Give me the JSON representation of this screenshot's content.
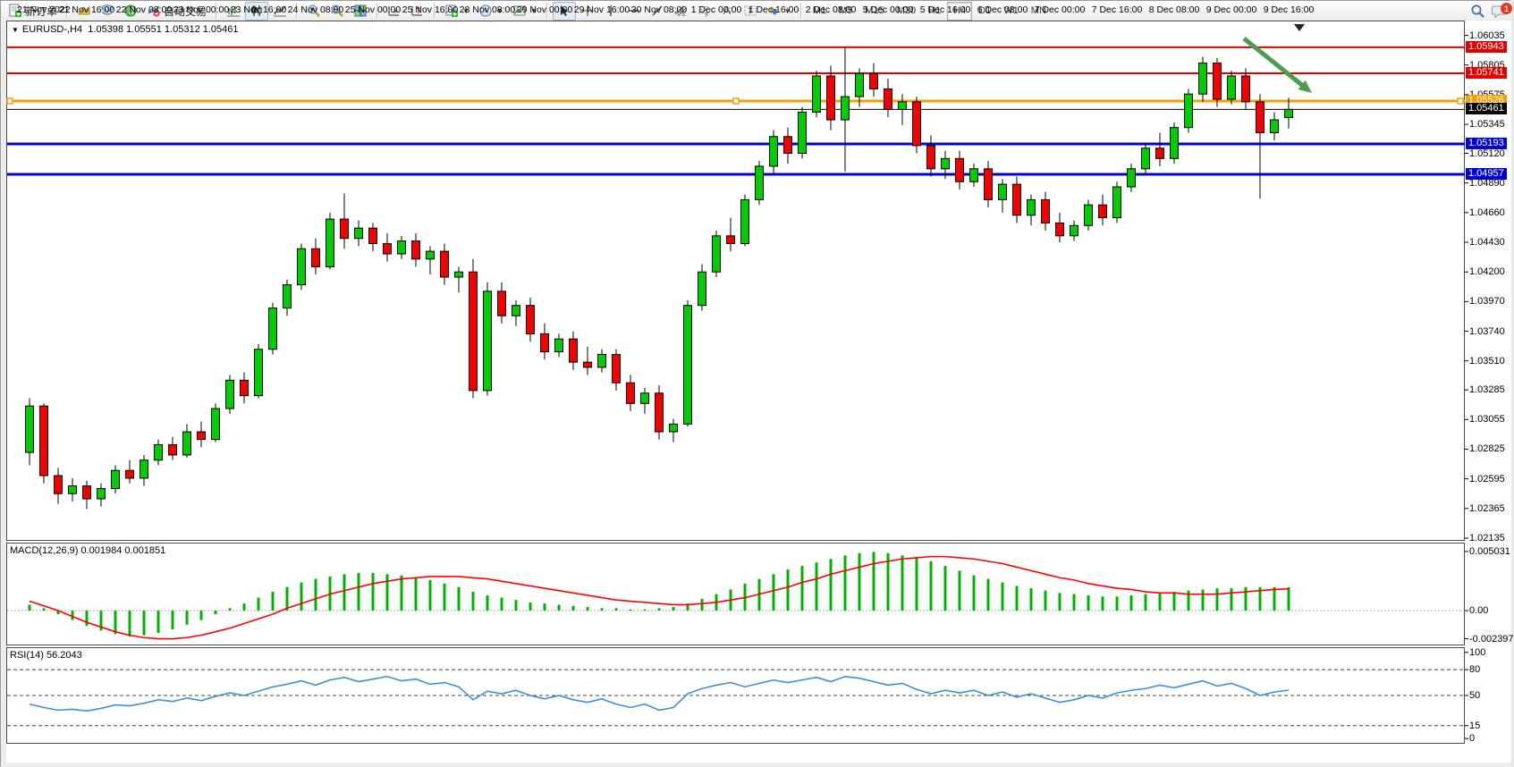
{
  "toolbar": {
    "new_order_label": "新订单",
    "auto_trading_label": "自动交易",
    "chart_tool_labels": {
      "annotation_a": "A",
      "annotation_t": "T",
      "channel": "E",
      "fibonacci": "F"
    },
    "timeframes": [
      "M1",
      "M5",
      "M15",
      "M30",
      "H1",
      "H4",
      "D1",
      "W1",
      "MN"
    ],
    "active_timeframe": "H4",
    "notification_count": "1"
  },
  "chart": {
    "title_symbol": "EURUSD-,H4",
    "title_ohlc": "1.05398 1.05551 1.05312 1.05461",
    "dropdown_triangle": "▼",
    "shift_marker": "▼"
  },
  "indicators": {
    "macd_label": "MACD(12,26,9) 0.001984 0.001851",
    "rsi_label": "RSI(14) 56.2043"
  },
  "price_axis": {
    "ticks": [
      1.06035,
      1.05805,
      1.05575,
      1.05345,
      1.0512,
      1.0489,
      1.0466,
      1.0443,
      1.042,
      1.0397,
      1.0374,
      1.0351,
      1.03285,
      1.03055,
      1.02825,
      1.02595,
      1.02365,
      1.02135
    ]
  },
  "macd_axis": {
    "ticks": [
      {
        "v": 0.005031,
        "label": "0.005031"
      },
      {
        "v": 0.0,
        "label": "0.00"
      },
      {
        "v": -0.002397,
        "label": "-0.002397"
      }
    ]
  },
  "rsi_axis": {
    "ticks": [
      {
        "v": 100,
        "label": "100"
      },
      {
        "v": 80,
        "label": "80"
      },
      {
        "v": 50,
        "label": "50"
      },
      {
        "v": 15,
        "label": "15"
      },
      {
        "v": 0,
        "label": "0"
      }
    ],
    "dashed_levels": [
      80,
      50,
      15
    ]
  },
  "time_axis": {
    "labels": [
      "21 Nov 2022",
      "21 Nov 16:00",
      "22 Nov 08:00",
      "23 Nov 00:00",
      "23 Nov 16:00",
      "24 Nov 08:00",
      "25 Nov 00:00",
      "25 Nov 16:00",
      "28 Nov 08:00",
      "29 Nov 00:00",
      "29 Nov 16:00",
      "30 Nov 08:00",
      "1 Dec 00:00",
      "1 Dec 16:00",
      "2 Dec 08:00",
      "5 Dec 00:00",
      "5 Dec 16:00",
      "6 Dec 08:00",
      "7 Dec 00:00",
      "7 Dec 16:00",
      "8 Dec 08:00",
      "9 Dec 00:00",
      "9 Dec 16:00"
    ],
    "candles_per_label": 4
  },
  "colors": {
    "candle_up": "#00ce00",
    "candle_down": "#f40000",
    "candle_border": "#000000",
    "macd_hist": "#00b000",
    "macd_signal": "#ff0000",
    "rsi_line": "#3e8fd6",
    "resistance_line": "#e40000",
    "support_line": "#0000d8",
    "orange_line": "#f5a000",
    "bid_line": "#000000",
    "arrow": "#4e9a4e"
  },
  "chart_data": {
    "type": "candlestick",
    "symbol": "EURUSD-",
    "period": "H4",
    "price_ylim": [
      1.02121,
      1.0615
    ],
    "candles": [
      [
        1.028,
        1.0322,
        1.027,
        1.0316
      ],
      [
        1.0316,
        1.0318,
        1.0256,
        1.0262
      ],
      [
        1.0262,
        1.0268,
        1.024,
        1.0248
      ],
      [
        1.0248,
        1.026,
        1.0242,
        1.0254
      ],
      [
        1.0254,
        1.0258,
        1.0236,
        1.0244
      ],
      [
        1.0244,
        1.0256,
        1.0238,
        1.0252
      ],
      [
        1.0252,
        1.027,
        1.0248,
        1.0266
      ],
      [
        1.0266,
        1.0274,
        1.0256,
        1.026
      ],
      [
        1.026,
        1.0278,
        1.0254,
        1.0274
      ],
      [
        1.0274,
        1.029,
        1.027,
        1.0286
      ],
      [
        1.0286,
        1.0292,
        1.0274,
        1.0278
      ],
      [
        1.0278,
        1.0302,
        1.0276,
        1.0296
      ],
      [
        1.0296,
        1.0304,
        1.0284,
        1.029
      ],
      [
        1.029,
        1.0318,
        1.0288,
        1.0314
      ],
      [
        1.0314,
        1.034,
        1.031,
        1.0336
      ],
      [
        1.0336,
        1.0342,
        1.0318,
        1.0324
      ],
      [
        1.0324,
        1.0364,
        1.0322,
        1.036
      ],
      [
        1.036,
        1.0396,
        1.0356,
        1.0392
      ],
      [
        1.0392,
        1.0414,
        1.0386,
        1.041
      ],
      [
        1.041,
        1.0442,
        1.0406,
        1.0438
      ],
      [
        1.0438,
        1.0446,
        1.0418,
        1.0424
      ],
      [
        1.0424,
        1.0466,
        1.0422,
        1.0461
      ],
      [
        1.0461,
        1.0481,
        1.0438,
        1.0446
      ],
      [
        1.0446,
        1.046,
        1.044,
        1.0454
      ],
      [
        1.0454,
        1.0458,
        1.0436,
        1.0442
      ],
      [
        1.0442,
        1.045,
        1.0428,
        1.0434
      ],
      [
        1.0434,
        1.0448,
        1.043,
        1.0444
      ],
      [
        1.0444,
        1.045,
        1.0424,
        1.043
      ],
      [
        1.043,
        1.044,
        1.0418,
        1.0436
      ],
      [
        1.0436,
        1.0442,
        1.041,
        1.0416
      ],
      [
        1.0416,
        1.0424,
        1.0404,
        1.042
      ],
      [
        1.042,
        1.043,
        1.0322,
        1.0328
      ],
      [
        1.0328,
        1.0412,
        1.0324,
        1.0405
      ],
      [
        1.0405,
        1.0412,
        1.038,
        1.0386
      ],
      [
        1.0386,
        1.0398,
        1.0378,
        1.0394
      ],
      [
        1.0394,
        1.04,
        1.0366,
        1.0372
      ],
      [
        1.0372,
        1.038,
        1.0352,
        1.0358
      ],
      [
        1.0358,
        1.0372,
        1.0354,
        1.0368
      ],
      [
        1.0368,
        1.0374,
        1.0344,
        1.035
      ],
      [
        1.035,
        1.0362,
        1.034,
        1.0346
      ],
      [
        1.0346,
        1.036,
        1.0342,
        1.0356
      ],
      [
        1.0356,
        1.036,
        1.0328,
        1.0334
      ],
      [
        1.0334,
        1.034,
        1.0312,
        1.0318
      ],
      [
        1.0318,
        1.033,
        1.031,
        1.0326
      ],
      [
        1.0326,
        1.0332,
        1.029,
        1.0296
      ],
      [
        1.0296,
        1.0306,
        1.0288,
        1.0302
      ],
      [
        1.0302,
        1.0398,
        1.03,
        1.0394
      ],
      [
        1.0394,
        1.0426,
        1.039,
        1.042
      ],
      [
        1.042,
        1.0452,
        1.0416,
        1.0448
      ],
      [
        1.0448,
        1.0462,
        1.0436,
        1.0442
      ],
      [
        1.0442,
        1.048,
        1.044,
        1.0476
      ],
      [
        1.0476,
        1.0506,
        1.0472,
        1.0502
      ],
      [
        1.0502,
        1.053,
        1.0496,
        1.0525
      ],
      [
        1.0525,
        1.0532,
        1.0504,
        1.0512
      ],
      [
        1.0512,
        1.0548,
        1.0508,
        1.0544
      ],
      [
        1.0544,
        1.0576,
        1.054,
        1.0572
      ],
      [
        1.0572,
        1.058,
        1.053,
        1.0538
      ],
      [
        1.0538,
        1.0594,
        1.0498,
        1.0556
      ],
      [
        1.0556,
        1.0578,
        1.0548,
        1.0574
      ],
      [
        1.0574,
        1.0582,
        1.0556,
        1.0562
      ],
      [
        1.0562,
        1.057,
        1.054,
        1.0546
      ],
      [
        1.0546,
        1.0558,
        1.0534,
        1.0552
      ],
      [
        1.0552,
        1.0556,
        1.0512,
        1.0518
      ],
      [
        1.0518,
        1.0526,
        1.0494,
        1.05
      ],
      [
        1.05,
        1.0514,
        1.0492,
        1.0508
      ],
      [
        1.0508,
        1.0514,
        1.0484,
        1.049
      ],
      [
        1.049,
        1.0504,
        1.0486,
        1.05
      ],
      [
        1.05,
        1.0506,
        1.047,
        1.0476
      ],
      [
        1.0476,
        1.0492,
        1.0466,
        1.0488
      ],
      [
        1.0488,
        1.0494,
        1.0458,
        1.0464
      ],
      [
        1.0464,
        1.048,
        1.0456,
        1.0476
      ],
      [
        1.0476,
        1.0482,
        1.0452,
        1.0458
      ],
      [
        1.0458,
        1.0466,
        1.0443,
        1.0448
      ],
      [
        1.0448,
        1.046,
        1.0444,
        1.0456
      ],
      [
        1.0456,
        1.0476,
        1.0452,
        1.0472
      ],
      [
        1.0472,
        1.048,
        1.0456,
        1.0462
      ],
      [
        1.0462,
        1.049,
        1.0458,
        1.0486
      ],
      [
        1.0486,
        1.0504,
        1.0482,
        1.05
      ],
      [
        1.05,
        1.052,
        1.0496,
        1.0516
      ],
      [
        1.0516,
        1.0528,
        1.0502,
        1.0508
      ],
      [
        1.0508,
        1.0536,
        1.0504,
        1.0532
      ],
      [
        1.0532,
        1.0562,
        1.0528,
        1.0558
      ],
      [
        1.0558,
        1.0587,
        1.0552,
        1.0582
      ],
      [
        1.0582,
        1.0586,
        1.0548,
        1.0554
      ],
      [
        1.0554,
        1.0576,
        1.055,
        1.0572
      ],
      [
        1.0572,
        1.0578,
        1.0546,
        1.0552
      ],
      [
        1.0552,
        1.0558,
        1.0477,
        1.0528
      ],
      [
        1.0528,
        1.0544,
        1.0522,
        1.0538
      ],
      [
        1.05398,
        1.05551,
        1.05312,
        1.05461
      ]
    ],
    "hlines": [
      {
        "price": 1.05943,
        "label": "1.05943",
        "color": "#e40000",
        "width": 2,
        "kind": "resistance"
      },
      {
        "price": 1.05741,
        "label": "1.05741",
        "color": "#e40000",
        "width": 2,
        "kind": "resistance"
      },
      {
        "price": 1.05526,
        "label": "1.05526",
        "color": "#f5a000",
        "width": 3,
        "kind": "drawn-line-selected"
      },
      {
        "price": 1.05461,
        "label": "1.05461",
        "color": "#000000",
        "width": 1,
        "kind": "bid"
      },
      {
        "price": 1.05193,
        "label": "1.05193",
        "color": "#0000d8",
        "width": 3,
        "kind": "support"
      },
      {
        "price": 1.04957,
        "label": "1.04957",
        "color": "#0000d8",
        "width": 3,
        "kind": "support"
      }
    ],
    "arrow_object": {
      "x1": 1390,
      "y1": 42,
      "x2": 1466,
      "y2": 103,
      "color": "#4e9a4e"
    },
    "macd": {
      "title": "MACD(12,26,9)",
      "current_hist": 0.001984,
      "current_signal": 0.001851,
      "ylim": [
        -0.00289,
        0.00579
      ],
      "histogram": [
        0.0005,
        0.0002,
        -0.0003,
        -0.0008,
        -0.0013,
        -0.0017,
        -0.002,
        -0.0022,
        -0.0021,
        -0.0019,
        -0.0016,
        -0.0012,
        -0.0008,
        -0.0003,
        0.0002,
        0.0006,
        0.0011,
        0.0016,
        0.002,
        0.0024,
        0.0027,
        0.0029,
        0.0031,
        0.0032,
        0.0032,
        0.0031,
        0.003,
        0.0028,
        0.0026,
        0.0023,
        0.002,
        0.0016,
        0.0013,
        0.0011,
        0.0009,
        0.0007,
        0.0006,
        0.0005,
        0.0004,
        0.0003,
        0.0002,
        0.0002,
        0.0001,
        0.0001,
        0.0002,
        0.0003,
        0.0006,
        0.001,
        0.0014,
        0.0018,
        0.0023,
        0.0027,
        0.0031,
        0.0035,
        0.0038,
        0.0041,
        0.0044,
        0.0047,
        0.0049,
        0.005,
        0.0049,
        0.0047,
        0.0045,
        0.0042,
        0.0038,
        0.0034,
        0.003,
        0.0027,
        0.0024,
        0.0021,
        0.0019,
        0.0017,
        0.0015,
        0.0014,
        0.0013,
        0.0012,
        0.0012,
        0.0013,
        0.0014,
        0.0015,
        0.0016,
        0.0017,
        0.0018,
        0.0019,
        0.0019,
        0.002,
        0.002,
        0.002,
        0.001984
      ],
      "signal": [
        0.0008,
        0.0004,
        0.0,
        -0.0005,
        -0.001,
        -0.0014,
        -0.0018,
        -0.0021,
        -0.0023,
        -0.0024,
        -0.0024,
        -0.0023,
        -0.0021,
        -0.0018,
        -0.0015,
        -0.0011,
        -0.0007,
        -0.0003,
        0.0002,
        0.0006,
        0.001,
        0.0014,
        0.0017,
        0.002,
        0.0023,
        0.0025,
        0.0027,
        0.0028,
        0.0029,
        0.0029,
        0.0029,
        0.0028,
        0.0027,
        0.0025,
        0.0023,
        0.0021,
        0.0019,
        0.0017,
        0.0015,
        0.0013,
        0.0011,
        0.0009,
        0.0008,
        0.0007,
        0.0006,
        0.0005,
        0.0005,
        0.0006,
        0.0007,
        0.0009,
        0.0011,
        0.0014,
        0.0017,
        0.002,
        0.0024,
        0.0027,
        0.0031,
        0.0034,
        0.0037,
        0.004,
        0.0042,
        0.0044,
        0.0045,
        0.0046,
        0.0046,
        0.0045,
        0.0044,
        0.0042,
        0.004,
        0.0037,
        0.0034,
        0.0031,
        0.0028,
        0.0026,
        0.0023,
        0.0021,
        0.0019,
        0.0018,
        0.0016,
        0.0015,
        0.0015,
        0.0014,
        0.0014,
        0.0014,
        0.0015,
        0.0016,
        0.0017,
        0.0018,
        0.001851
      ]
    },
    "rsi": {
      "title": "RSI(14)",
      "current": 56.2043,
      "ylim": [
        -5,
        106
      ],
      "values": [
        40,
        36,
        33,
        34,
        32,
        35,
        39,
        38,
        41,
        45,
        43,
        47,
        44,
        49,
        53,
        50,
        55,
        60,
        63,
        67,
        62,
        68,
        71,
        66,
        69,
        72,
        67,
        69,
        63,
        65,
        60,
        45,
        55,
        52,
        56,
        50,
        46,
        50,
        45,
        42,
        46,
        40,
        36,
        40,
        33,
        36,
        52,
        58,
        62,
        65,
        60,
        64,
        68,
        65,
        68,
        71,
        66,
        72,
        70,
        66,
        62,
        64,
        57,
        52,
        56,
        53,
        56,
        50,
        54,
        48,
        52,
        47,
        42,
        45,
        50,
        47,
        53,
        56,
        58,
        62,
        59,
        63,
        67,
        61,
        64,
        58,
        50,
        54,
        56.2043
      ]
    }
  }
}
